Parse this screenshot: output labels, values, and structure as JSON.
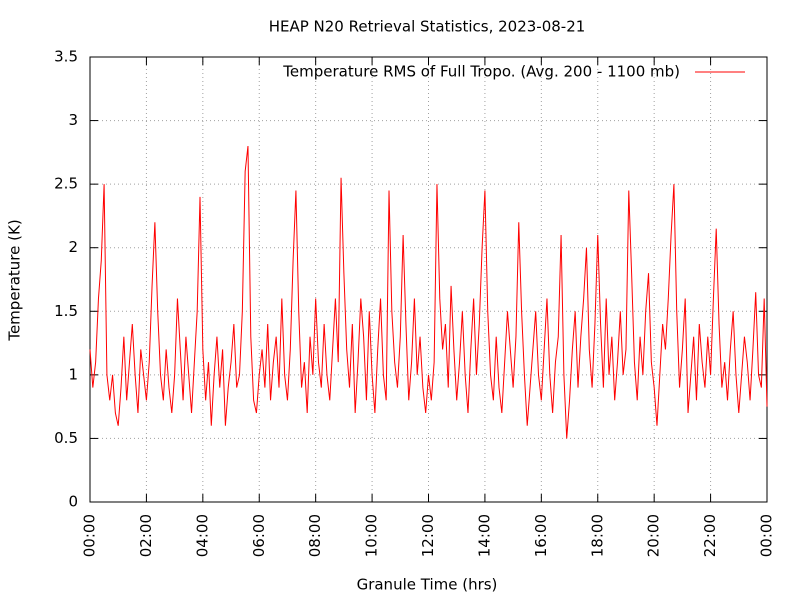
{
  "chart_data": {
    "type": "line",
    "title": "HEAP N20 Retrieval Statistics, 2023-08-21",
    "xlabel": "Granule Time (hrs)",
    "ylabel": "Temperature (K)",
    "xlim": [
      0,
      24
    ],
    "xticks": [
      {
        "value": 0,
        "label": "00:00"
      },
      {
        "value": 2,
        "label": "02:00"
      },
      {
        "value": 4,
        "label": "04:00"
      },
      {
        "value": 6,
        "label": "06:00"
      },
      {
        "value": 8,
        "label": "08:00"
      },
      {
        "value": 10,
        "label": "10:00"
      },
      {
        "value": 12,
        "label": "12:00"
      },
      {
        "value": 14,
        "label": "14:00"
      },
      {
        "value": 16,
        "label": "16:00"
      },
      {
        "value": 18,
        "label": "18:00"
      },
      {
        "value": 20,
        "label": "20:00"
      },
      {
        "value": 22,
        "label": "22:00"
      },
      {
        "value": 24,
        "label": "00:00"
      }
    ],
    "ylim": [
      0,
      3.5
    ],
    "yticks": [
      0,
      0.5,
      1,
      1.5,
      2,
      2.5,
      3,
      3.5
    ],
    "grid": true,
    "legend": "top right",
    "x": [
      0,
      0.1,
      0.2,
      0.3,
      0.4,
      0.5,
      0.6,
      0.7,
      0.8,
      0.9,
      1,
      1.1,
      1.2,
      1.3,
      1.4,
      1.5,
      1.6,
      1.7,
      1.8,
      1.9,
      2,
      2.1,
      2.2,
      2.3,
      2.4,
      2.5,
      2.6,
      2.7,
      2.8,
      2.9,
      3,
      3.1,
      3.2,
      3.3,
      3.4,
      3.5,
      3.6,
      3.7,
      3.8,
      3.9,
      4,
      4.1,
      4.2,
      4.3,
      4.4,
      4.5,
      4.6,
      4.7,
      4.8,
      4.9,
      5,
      5.1,
      5.2,
      5.3,
      5.4,
      5.5,
      5.6,
      5.7,
      5.8,
      5.9,
      6,
      6.1,
      6.2,
      6.3,
      6.4,
      6.5,
      6.6,
      6.7,
      6.8,
      6.9,
      7,
      7.1,
      7.2,
      7.3,
      7.4,
      7.5,
      7.6,
      7.7,
      7.8,
      7.9,
      8,
      8.1,
      8.2,
      8.3,
      8.4,
      8.5,
      8.6,
      8.7,
      8.8,
      8.9,
      9,
      9.1,
      9.2,
      9.3,
      9.4,
      9.5,
      9.6,
      9.7,
      9.8,
      9.9,
      10,
      10.1,
      10.2,
      10.3,
      10.4,
      10.5,
      10.6,
      10.7,
      10.8,
      10.9,
      11,
      11.1,
      11.2,
      11.3,
      11.4,
      11.5,
      11.6,
      11.7,
      11.8,
      11.9,
      12,
      12.1,
      12.2,
      12.3,
      12.4,
      12.5,
      12.6,
      12.7,
      12.8,
      12.9,
      13,
      13.1,
      13.2,
      13.3,
      13.4,
      13.5,
      13.6,
      13.7,
      13.8,
      13.9,
      14,
      14.1,
      14.2,
      14.3,
      14.4,
      14.5,
      14.6,
      14.7,
      14.8,
      14.9,
      15,
      15.1,
      15.2,
      15.3,
      15.4,
      15.5,
      15.6,
      15.7,
      15.8,
      15.9,
      16,
      16.1,
      16.2,
      16.3,
      16.4,
      16.5,
      16.6,
      16.7,
      16.8,
      16.9,
      17,
      17.1,
      17.2,
      17.3,
      17.4,
      17.5,
      17.6,
      17.7,
      17.8,
      17.9,
      18,
      18.1,
      18.2,
      18.3,
      18.4,
      18.5,
      18.6,
      18.7,
      18.8,
      18.9,
      19,
      19.1,
      19.2,
      19.3,
      19.4,
      19.5,
      19.6,
      19.7,
      19.8,
      19.9,
      20,
      20.1,
      20.2,
      20.3,
      20.4,
      20.5,
      20.6,
      20.7,
      20.8,
      20.9,
      21,
      21.1,
      21.2,
      21.3,
      21.4,
      21.5,
      21.6,
      21.7,
      21.8,
      21.9,
      22,
      22.1,
      22.2,
      22.3,
      22.4,
      22.5,
      22.6,
      22.7,
      22.8,
      22.9,
      23,
      23.1,
      23.2,
      23.3,
      23.4,
      23.5,
      23.6,
      23.7,
      23.8,
      23.9,
      24
    ],
    "series": [
      {
        "name": "Temperature RMS of Full Tropo. (Avg. 200 - 1100 mb)",
        "color": "#ff0000",
        "values": [
          1.2,
          0.9,
          1.1,
          1.6,
          1.9,
          2.5,
          1.0,
          0.8,
          1.0,
          0.7,
          0.6,
          0.9,
          1.3,
          0.8,
          1.1,
          1.4,
          1.0,
          0.7,
          1.2,
          1.0,
          0.8,
          1.1,
          1.7,
          2.2,
          1.5,
          1.0,
          0.8,
          1.2,
          0.9,
          0.7,
          1.0,
          1.6,
          1.2,
          0.8,
          1.3,
          1.0,
          0.7,
          1.1,
          1.5,
          2.4,
          1.2,
          0.8,
          1.1,
          0.6,
          1.0,
          1.3,
          0.9,
          1.2,
          0.6,
          0.9,
          1.1,
          1.4,
          0.9,
          1.0,
          1.5,
          2.6,
          2.8,
          1.3,
          0.8,
          0.7,
          1.0,
          1.2,
          0.9,
          1.4,
          0.8,
          1.1,
          1.3,
          0.9,
          1.6,
          1.0,
          0.8,
          1.2,
          1.9,
          2.45,
          1.5,
          0.9,
          1.1,
          0.7,
          1.3,
          1.0,
          1.6,
          1.1,
          0.9,
          1.4,
          1.0,
          0.8,
          1.2,
          1.6,
          1.1,
          2.55,
          1.8,
          1.2,
          0.9,
          1.4,
          0.7,
          1.1,
          1.6,
          1.3,
          0.8,
          1.5,
          1.0,
          0.7,
          1.2,
          1.6,
          1.0,
          0.8,
          2.45,
          1.5,
          1.1,
          0.9,
          1.3,
          2.1,
          1.4,
          0.8,
          1.1,
          1.6,
          1.0,
          1.3,
          0.9,
          0.7,
          1.0,
          0.8,
          1.1,
          2.5,
          1.6,
          1.2,
          1.4,
          0.9,
          1.7,
          1.2,
          0.8,
          1.1,
          1.5,
          1.0,
          0.7,
          1.2,
          1.6,
          1.0,
          1.4,
          2.0,
          2.45,
          1.5,
          1.0,
          0.8,
          1.3,
          0.9,
          0.7,
          1.1,
          1.5,
          1.2,
          0.9,
          1.3,
          2.2,
          1.5,
          1.0,
          0.6,
          0.9,
          1.2,
          1.5,
          1.0,
          0.8,
          1.2,
          1.6,
          1.0,
          0.7,
          1.1,
          1.3,
          2.1,
          1.0,
          0.5,
          0.8,
          1.2,
          1.5,
          0.9,
          1.3,
          1.6,
          2.0,
          1.2,
          0.9,
          1.4,
          2.1,
          1.4,
          0.9,
          1.6,
          1.0,
          1.3,
          0.8,
          1.1,
          1.5,
          1.0,
          1.2,
          2.45,
          1.8,
          1.1,
          0.8,
          1.3,
          1.0,
          1.5,
          1.8,
          1.1,
          0.9,
          0.6,
          1.0,
          1.4,
          1.2,
          1.6,
          2.1,
          2.5,
          1.5,
          0.9,
          1.2,
          1.6,
          0.7,
          1.0,
          1.3,
          0.8,
          1.4,
          1.1,
          0.9,
          1.3,
          1.0,
          1.6,
          2.15,
          1.4,
          0.9,
          1.1,
          0.8,
          1.2,
          1.5,
          1.0,
          0.7,
          1.0,
          1.3,
          1.1,
          0.8,
          1.2,
          1.65,
          1.0,
          0.9,
          1.6,
          0.75
        ]
      }
    ]
  }
}
